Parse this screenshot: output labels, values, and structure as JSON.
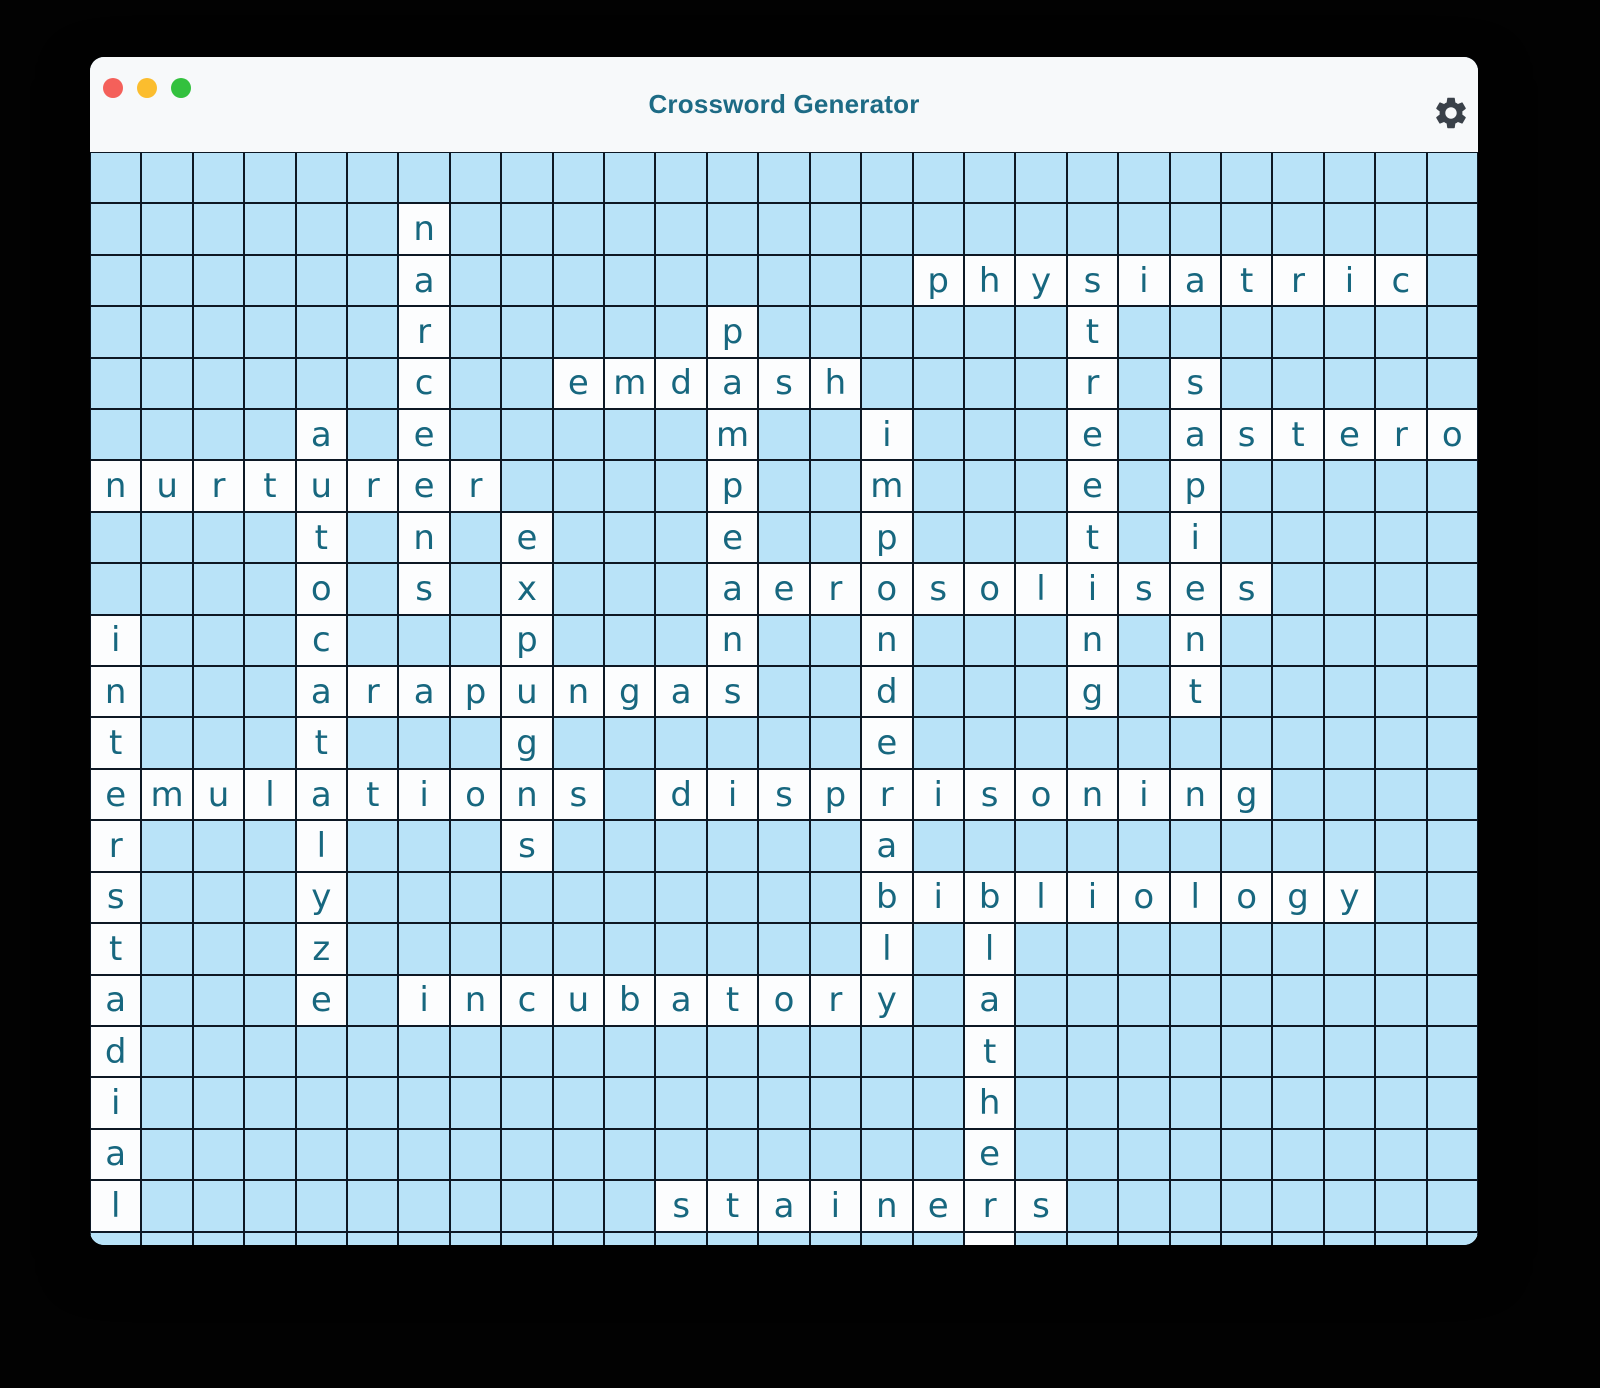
{
  "window": {
    "title": "Crossword Generator",
    "title_color": "#1d6b85",
    "traffic_lights": [
      "#f4605a",
      "#fbbd2e",
      "#33c13e"
    ],
    "gear_color": "#3a4149"
  },
  "grid": {
    "rows": 22,
    "cols": 27,
    "colors": {
      "empty": "#b9e3f8",
      "filled": "#fcfdfe",
      "line": "#0d1824",
      "letter": "#17677f"
    },
    "cells": [
      "...........................",
      "......n....................",
      "......a.........physiatric.",
      "......r.....p......t.......",
      "......c..emdash....r.s.....",
      "....a.e.....m..i...e.astero",
      "nurturer....p..m...e.p.....",
      "....t.n.e...e..p...t.i.....",
      "....o.s.x...aerosolises....",
      "i...c...p...n..n...n.n.....",
      "n...arapungas..d...g.t.....",
      "t...t...g......e...........",
      "emulations.disprisoning....",
      "r...l...s......a...........",
      "s...y..........bibliology..",
      "t...z..........l.l.........",
      "a...e.incubatory.a.........",
      "d................t.........",
      "i................h.........",
      "a................e.........",
      "l..........stainers........",
      ".................s........."
    ],
    "words": {
      "across": [
        {
          "row": 2,
          "col": 16,
          "word": "physiatric"
        },
        {
          "row": 4,
          "col": 9,
          "word": "emdash"
        },
        {
          "row": 5,
          "col": 21,
          "word": "astero"
        },
        {
          "row": 6,
          "col": 0,
          "word": "nurturer"
        },
        {
          "row": 8,
          "col": 12,
          "word": "aerosolises"
        },
        {
          "row": 10,
          "col": 4,
          "word": "arapungas"
        },
        {
          "row": 12,
          "col": 0,
          "word": "emulations"
        },
        {
          "row": 12,
          "col": 11,
          "word": "disprisoning"
        },
        {
          "row": 14,
          "col": 15,
          "word": "bibliology"
        },
        {
          "row": 16,
          "col": 6,
          "word": "incubatory"
        },
        {
          "row": 20,
          "col": 11,
          "word": "stainers"
        }
      ],
      "down": [
        {
          "row": 1,
          "col": 6,
          "word": "narceens"
        },
        {
          "row": 5,
          "col": 4,
          "word": "autocatalyze"
        },
        {
          "row": 3,
          "col": 12,
          "word": "pampeans"
        },
        {
          "row": 5,
          "col": 15,
          "word": "imponderably"
        },
        {
          "row": 2,
          "col": 19,
          "word": "streeting"
        },
        {
          "row": 4,
          "col": 21,
          "word": "sapient"
        },
        {
          "row": 7,
          "col": 8,
          "word": "expugns"
        },
        {
          "row": 9,
          "col": 0,
          "word": "interstadial"
        },
        {
          "row": 14,
          "col": 17,
          "word": "blathers"
        }
      ]
    }
  }
}
